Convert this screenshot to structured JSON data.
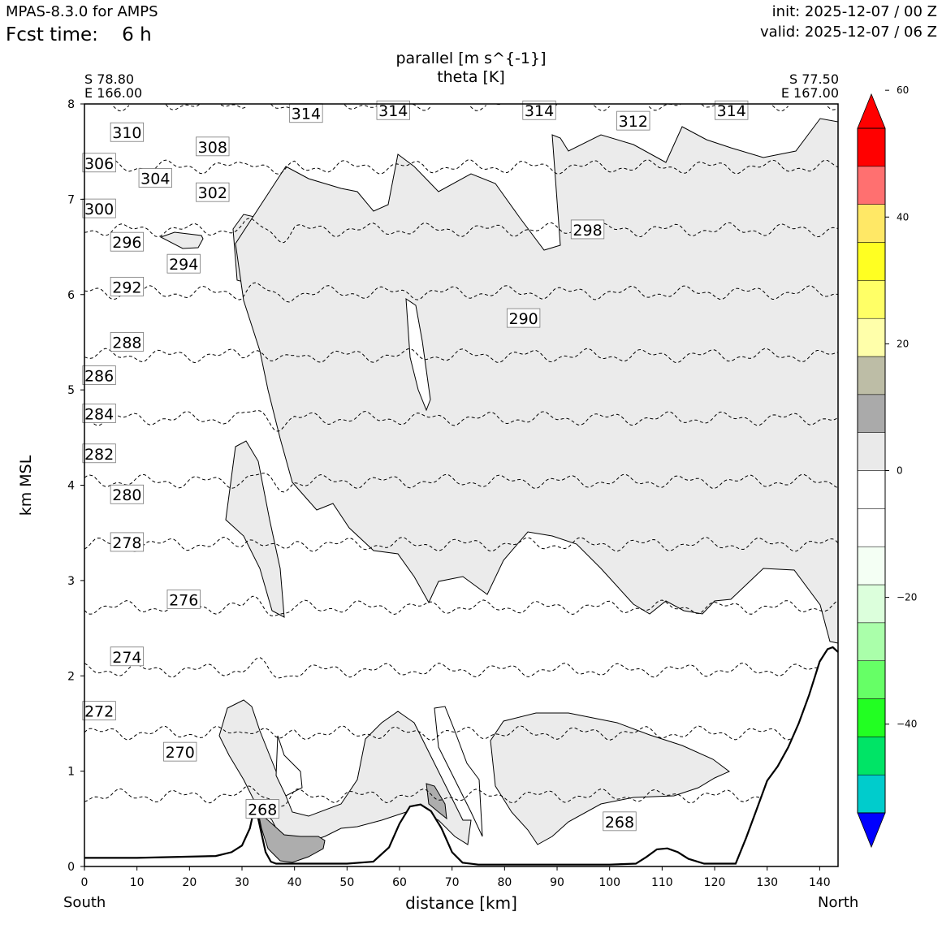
{
  "header": {
    "app": "MPAS-8.3.0 for AMPS",
    "fcst_label": "Fcst time:",
    "fcst_value": "6 h",
    "init": "init: 2025-12-07 / 00 Z",
    "valid": "valid: 2025-12-07 / 06 Z"
  },
  "colors": {
    "shade_light": "#ebebeb",
    "shade_dark": "#adadad",
    "terrain": "#000000",
    "colorbar": [
      "#0000ff",
      "#00cccc",
      "#00e466",
      "#22ff22",
      "#66ff66",
      "#aaffaa",
      "#dcffdc",
      "#f4fff4",
      "#ffffff",
      "#ffffff",
      "#eaeaea",
      "#aaaaaa",
      "#bdbda6",
      "#ffffaa",
      "#ffff66",
      "#ffff22",
      "#ffe866",
      "#ff7070",
      "#ff0000",
      "#ff0000"
    ]
  },
  "chart_data": {
    "type": "cross-section",
    "title": "parallel [m s^{-1}]",
    "subtitle": "theta [K]",
    "xlabel": "distance [km]",
    "ylabel": "km MSL",
    "xlim": [
      0,
      143.5
    ],
    "ylim": [
      0,
      8
    ],
    "x_ticks": [
      "0",
      "10",
      "20",
      "30",
      "40",
      "50",
      "60",
      "70",
      "80",
      "90",
      "100",
      "110",
      "120",
      "130",
      "140"
    ],
    "y_ticks": [
      "0",
      "1",
      "2",
      "3",
      "4",
      "5",
      "6",
      "7",
      "8"
    ],
    "left_endpoint": {
      "lat": "S 78.80",
      "lon": "E 166.00",
      "label": "South"
    },
    "right_endpoint": {
      "lat": "S 77.50",
      "lon": "E 167.00",
      "label": "North"
    },
    "colorbar": {
      "levels": [
        -60,
        -54,
        -48,
        -42,
        -36,
        -30,
        -24,
        -18,
        -12,
        -6,
        0,
        6,
        12,
        18,
        24,
        30,
        36,
        42,
        48,
        54,
        60
      ],
      "tick_labels": [
        "60",
        "40",
        "20",
        "0",
        "−20",
        "−40"
      ],
      "tick_values": [
        60,
        40,
        20,
        0,
        -20,
        -40
      ]
    },
    "terrain": {
      "x": [
        0,
        10,
        25,
        28,
        30,
        31.5,
        32.5,
        33.5,
        34.5,
        35.5,
        36.5,
        38,
        40,
        45,
        50,
        55,
        58,
        60,
        62,
        64,
        66,
        68,
        70,
        72,
        75,
        80,
        90,
        100,
        105,
        107,
        109,
        111,
        113,
        115,
        118,
        124,
        126,
        128,
        130,
        132,
        134,
        136,
        138,
        140,
        141.5,
        142.5,
        143.5
      ],
      "height_km": [
        0.09,
        0.09,
        0.11,
        0.15,
        0.22,
        0.4,
        0.65,
        0.4,
        0.15,
        0.05,
        0.03,
        0.03,
        0.03,
        0.03,
        0.03,
        0.05,
        0.2,
        0.45,
        0.63,
        0.65,
        0.58,
        0.4,
        0.15,
        0.04,
        0.02,
        0.02,
        0.02,
        0.02,
        0.03,
        0.1,
        0.18,
        0.19,
        0.15,
        0.08,
        0.03,
        0.03,
        0.3,
        0.6,
        0.9,
        1.05,
        1.25,
        1.5,
        1.8,
        2.15,
        2.28,
        2.3,
        2.25
      ]
    },
    "theta_contours": [
      {
        "label": "314",
        "k": 314
      },
      {
        "label": "312",
        "k": 312
      },
      {
        "label": "310",
        "k": 310
      },
      {
        "label": "308",
        "k": 308
      },
      {
        "label": "306",
        "k": 306
      },
      {
        "label": "304",
        "k": 304
      },
      {
        "label": "302",
        "k": 302
      },
      {
        "label": "300",
        "k": 300
      },
      {
        "label": "298",
        "k": 298
      },
      {
        "label": "296",
        "k": 296
      },
      {
        "label": "294",
        "k": 294
      },
      {
        "label": "292",
        "k": 292
      },
      {
        "label": "290",
        "k": 290
      },
      {
        "label": "288",
        "k": 288
      },
      {
        "label": "286",
        "k": 286
      },
      {
        "label": "284",
        "k": 284
      },
      {
        "label": "282",
        "k": 282
      },
      {
        "label": "280",
        "k": 280
      },
      {
        "label": "278",
        "k": 278
      },
      {
        "label": "276",
        "k": 276
      },
      {
        "label": "274",
        "k": 274
      },
      {
        "label": "272",
        "k": 272
      },
      {
        "label": "270",
        "k": 270
      },
      {
        "label": "268",
        "k": 268
      }
    ],
    "contour_labels": [
      {
        "text": "314",
        "x": 42.2,
        "y": 7.9
      },
      {
        "text": "314",
        "x": 58.8,
        "y": 7.93
      },
      {
        "text": "314",
        "x": 86.6,
        "y": 7.93
      },
      {
        "text": "314",
        "x": 123.2,
        "y": 7.93
      },
      {
        "text": "312",
        "x": 104.5,
        "y": 7.82
      },
      {
        "text": "310",
        "x": 8.1,
        "y": 7.7
      },
      {
        "text": "308",
        "x": 24.4,
        "y": 7.55
      },
      {
        "text": "306",
        "x": 2.8,
        "y": 7.38
      },
      {
        "text": "304",
        "x": 13.5,
        "y": 7.22
      },
      {
        "text": "302",
        "x": 24.4,
        "y": 7.07
      },
      {
        "text": "300",
        "x": 2.8,
        "y": 6.9
      },
      {
        "text": "298",
        "x": 95.8,
        "y": 6.68
      },
      {
        "text": "296",
        "x": 8.1,
        "y": 6.55
      },
      {
        "text": "294",
        "x": 18.9,
        "y": 6.32
      },
      {
        "text": "292",
        "x": 8.1,
        "y": 6.08
      },
      {
        "text": "290",
        "x": 83.6,
        "y": 5.75
      },
      {
        "text": "288",
        "x": 8.1,
        "y": 5.5
      },
      {
        "text": "286",
        "x": 2.8,
        "y": 5.15
      },
      {
        "text": "284",
        "x": 2.8,
        "y": 4.75
      },
      {
        "text": "282",
        "x": 2.8,
        "y": 4.33
      },
      {
        "text": "280",
        "x": 8.1,
        "y": 3.9
      },
      {
        "text": "278",
        "x": 8.1,
        "y": 3.4
      },
      {
        "text": "276",
        "x": 18.9,
        "y": 2.8
      },
      {
        "text": "274",
        "x": 8.1,
        "y": 2.2
      },
      {
        "text": "272",
        "x": 2.8,
        "y": 1.63
      },
      {
        "text": "270",
        "x": 18.2,
        "y": 1.2
      },
      {
        "text": "268",
        "x": 33.9,
        "y": 0.6
      },
      {
        "text": "268",
        "x": 101.9,
        "y": 0.47
      }
    ]
  }
}
